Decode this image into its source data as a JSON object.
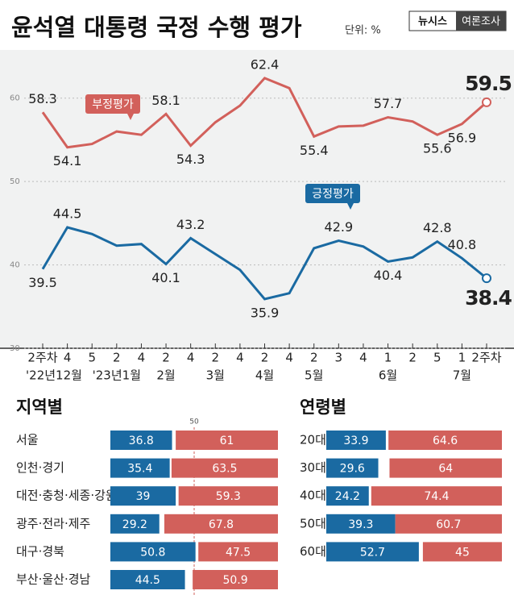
{
  "chart_data": [
    {
      "type": "line",
      "title": "윤석열 대통령 국정 수행 평가",
      "unit_label": "단위: %",
      "source": "뉴시스",
      "source_tag": "여론조사",
      "categories": [
        "2주차",
        "4",
        "5",
        "2",
        "4",
        "2",
        "4",
        "2",
        "4",
        "2",
        "4",
        "2",
        "3",
        "4",
        "1",
        "2",
        "5",
        "1",
        "2주차"
      ],
      "month_labels": [
        "'22년12월",
        null,
        null,
        "'23년1월",
        null,
        "2월",
        null,
        "3월",
        null,
        "4월",
        null,
        "5월",
        null,
        null,
        "6월",
        null,
        null,
        "7월",
        null
      ],
      "series": [
        {
          "name": "부정평가",
          "color": "#d2605b",
          "values": [
            58.3,
            54.1,
            54.5,
            56.0,
            55.6,
            58.1,
            54.3,
            57.1,
            59.1,
            62.4,
            61.2,
            55.4,
            56.6,
            56.7,
            57.7,
            57.2,
            55.6,
            56.9,
            59.5
          ],
          "value_labels": [
            "58.3",
            "54.1",
            null,
            null,
            null,
            "58.1",
            "54.3",
            null,
            null,
            "62.4",
            null,
            "55.4",
            null,
            null,
            "57.7",
            null,
            "55.6",
            "56.9",
            "59.5"
          ]
        },
        {
          "name": "긍정평가",
          "color": "#1a6aa2",
          "values": [
            39.5,
            44.5,
            43.7,
            42.3,
            42.5,
            40.1,
            43.2,
            41.3,
            39.4,
            35.9,
            36.6,
            42.0,
            42.9,
            42.2,
            40.4,
            40.9,
            42.8,
            40.8,
            38.4
          ],
          "value_labels": [
            "39.5",
            "44.5",
            null,
            null,
            null,
            "40.1",
            "43.2",
            null,
            null,
            "35.9",
            null,
            null,
            "42.9",
            null,
            "40.4",
            null,
            "42.8",
            "40.8",
            "38.4"
          ]
        }
      ],
      "ylim": [
        30,
        65
      ],
      "yticks": [
        30,
        40,
        50,
        60
      ],
      "grid": true
    },
    {
      "type": "stacked_bar_h",
      "title": "지역별",
      "categories": [
        "서울",
        "인천·경기",
        "대전·충청·세종·강원",
        "광주·전라·제주",
        "대구·경북",
        "부산·울산·경남"
      ],
      "series": [
        {
          "color": "#1a6aa2",
          "values": [
            36.8,
            35.4,
            39.0,
            29.2,
            50.8,
            44.5
          ]
        },
        {
          "color": "#d2605b",
          "values": [
            61.0,
            63.5,
            59.3,
            67.8,
            47.5,
            50.9
          ]
        }
      ],
      "xlim": [
        0,
        100
      ],
      "xticks": [
        50
      ]
    },
    {
      "type": "stacked_bar_h",
      "title": "연령별",
      "categories": [
        "20대",
        "30대",
        "40대",
        "50대",
        "60대↑"
      ],
      "series": [
        {
          "color": "#1a6aa2",
          "values": [
            33.9,
            29.6,
            24.2,
            39.3,
            52.7
          ]
        },
        {
          "color": "#d2605b",
          "values": [
            64.6,
            64.0,
            74.4,
            60.7,
            45.0
          ]
        }
      ],
      "xlim": [
        0,
        100
      ],
      "xticks": []
    }
  ]
}
